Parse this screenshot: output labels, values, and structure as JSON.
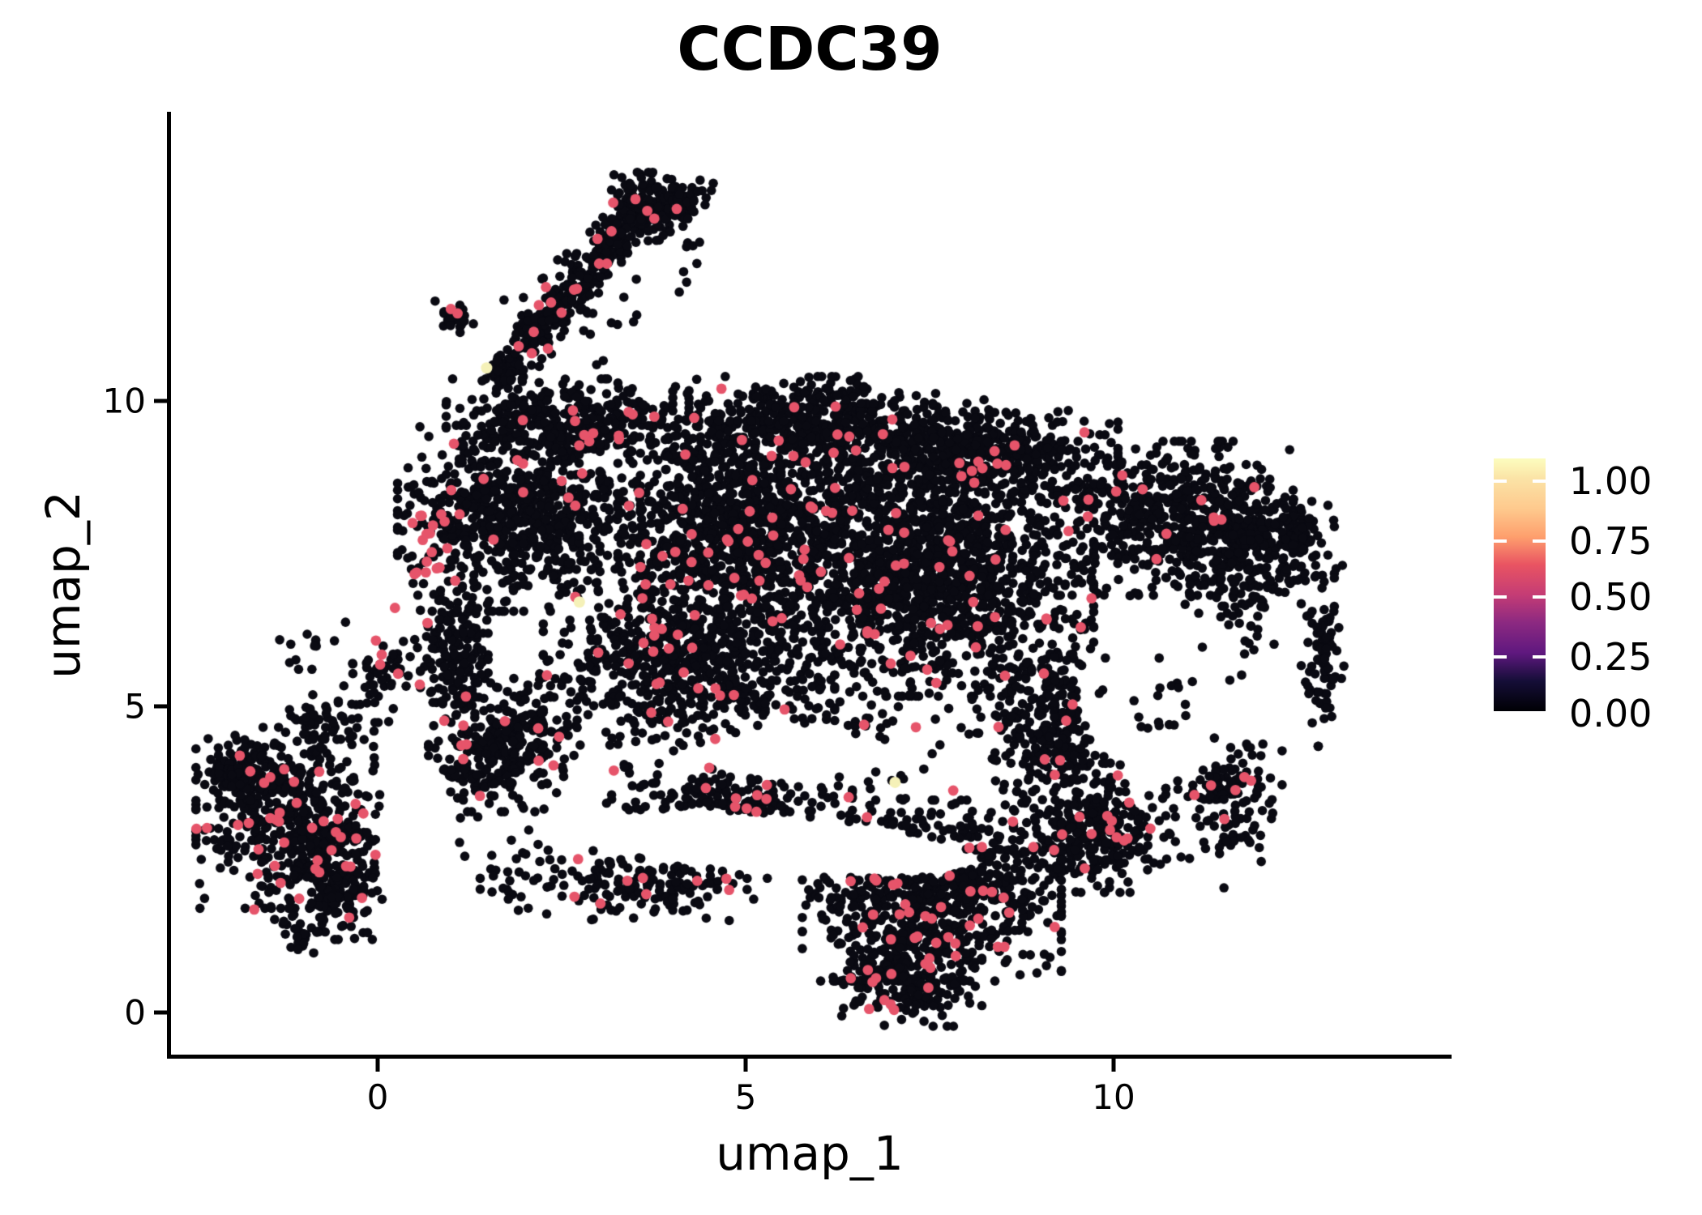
{
  "chart_data": {
    "type": "scatter",
    "title": "CCDC39",
    "xlabel": "umap_1",
    "ylabel": "umap_2",
    "xlim": [
      -2.82,
      14.56
    ],
    "ylim": [
      -0.72,
      14.73
    ],
    "x_ticks": [
      "0",
      "5",
      "10"
    ],
    "x_tick_values": [
      0,
      5,
      10
    ],
    "y_ticks": [
      "0",
      "5",
      "10"
    ],
    "y_tick_values": [
      0,
      5,
      10
    ],
    "grid": false,
    "background": "#ffffff",
    "seed": 42,
    "point_style": {
      "radius_black_px": 5.8,
      "radius_mid_px": 6.4,
      "radius_high_px": 7,
      "color_black": "#0A0A12",
      "color_mid": "#E6546A",
      "color_high": "#F5F1B8"
    },
    "clusters_black": [
      [
        1.7,
        10.53,
        0.28,
        0.33,
        55
      ],
      [
        2.08,
        11.06,
        0.31,
        0.37,
        55
      ],
      [
        2.47,
        11.55,
        0.33,
        0.4,
        55
      ],
      [
        2.8,
        12.05,
        0.33,
        0.4,
        55
      ],
      [
        3.13,
        12.58,
        0.35,
        0.42,
        60
      ],
      [
        3.4,
        12.95,
        0.35,
        0.42,
        55
      ],
      [
        3.68,
        13.18,
        0.61,
        0.56,
        130
      ],
      [
        4.17,
        13.31,
        0.39,
        0.33,
        45
      ],
      [
        1.04,
        11.39,
        0.26,
        0.27,
        28
      ],
      [
        2.58,
        11.52,
        0.94,
        1.13,
        42
      ],
      [
        4.23,
        12.38,
        0.22,
        0.6,
        8
      ],
      [
        1.92,
        8.08,
        1.65,
        1.52,
        720
      ],
      [
        2.58,
        9.67,
        1.65,
        0.69,
        360
      ],
      [
        5.88,
        9.67,
        1.87,
        0.73,
        420
      ],
      [
        4.78,
        7.95,
        1.76,
        1.72,
        900
      ],
      [
        4.23,
        5.7,
        1.98,
        1.33,
        620
      ],
      [
        7.53,
        7.29,
        2.2,
        2.12,
        1350
      ],
      [
        8.08,
        9.14,
        1.98,
        0.82,
        500
      ],
      [
        10.84,
        8.08,
        1.6,
        1.26,
        560
      ],
      [
        11.72,
        7.29,
        0.68,
        1.59,
        180
      ],
      [
        9.19,
        4.64,
        0.9,
        1.22,
        270
      ],
      [
        9.74,
        2.91,
        1.1,
        0.95,
        270
      ],
      [
        11.5,
        3.71,
        0.79,
        1.29,
        150
      ],
      [
        12.84,
        5.83,
        0.29,
        1.48,
        85
      ],
      [
        12.43,
        7.88,
        0.57,
        0.82,
        110
      ],
      [
        7.53,
        1.99,
        1.76,
        1.48,
        780
      ],
      [
        7.2,
        0.53,
        1.01,
        0.76,
        230
      ],
      [
        4.78,
        3.31,
        1.67,
        0.76,
        300
      ],
      [
        3.68,
        2.12,
        1.34,
        0.62,
        150
      ],
      [
        1.7,
        4.37,
        1.01,
        1.09,
        320
      ],
      [
        1.04,
        5.96,
        0.46,
        1.09,
        160
      ],
      [
        1.92,
        2.25,
        0.61,
        0.73,
        35
      ],
      [
        6.43,
        5.96,
        5.07,
        4.11,
        420
      ],
      [
        10.78,
        5.23,
        1.0,
        0.9,
        26,
        1
      ],
      [
        -1.17,
        3.18,
        1.3,
        1.48,
        440
      ],
      [
        -0.51,
        2.12,
        0.68,
        0.93,
        160
      ],
      [
        -1.83,
        3.97,
        0.52,
        0.56,
        120
      ],
      [
        0.6,
        2.78,
        0.79,
        0.69,
        75
      ],
      [
        -0.73,
        4.64,
        0.68,
        0.66,
        60
      ],
      [
        -1.06,
        1.33,
        0.46,
        0.36,
        26
      ],
      [
        0.04,
        5.56,
        0.5,
        0.82,
        50
      ],
      [
        -0.95,
        6.03,
        0.46,
        0.42,
        12
      ]
    ],
    "clusters_mid": [
      [
        1.9,
        10.8,
        0.35,
        0.45,
        3
      ],
      [
        2.5,
        11.6,
        0.4,
        0.5,
        4
      ],
      [
        3.1,
        12.5,
        0.45,
        0.5,
        4
      ],
      [
        3.7,
        13.2,
        0.5,
        0.45,
        5
      ],
      [
        1.05,
        11.4,
        0.2,
        0.25,
        2
      ],
      [
        2.6,
        11.5,
        0.8,
        1.0,
        3
      ],
      [
        -1.17,
        3.18,
        1.35,
        1.5,
        34
      ],
      [
        -0.5,
        2.1,
        0.7,
        0.9,
        8
      ],
      [
        0.6,
        2.8,
        0.8,
        0.7,
        6
      ],
      [
        0.7,
        7.8,
        0.5,
        1.5,
        22
      ],
      [
        1.9,
        8.6,
        0.9,
        0.9,
        10
      ],
      [
        3.5,
        9.6,
        1.6,
        0.6,
        12
      ],
      [
        5.9,
        9.6,
        1.7,
        0.6,
        10
      ],
      [
        8.1,
        9.1,
        1.9,
        0.7,
        12
      ],
      [
        4.8,
        7.6,
        1.8,
        1.7,
        34
      ],
      [
        7.5,
        7.1,
        2.2,
        2.0,
        40
      ],
      [
        4.2,
        5.7,
        1.9,
        1.3,
        24
      ],
      [
        10.8,
        8.1,
        1.5,
        1.2,
        12
      ],
      [
        9.2,
        4.6,
        0.9,
        1.2,
        10
      ],
      [
        9.7,
        2.9,
        1.0,
        0.9,
        12
      ],
      [
        11.5,
        3.7,
        0.7,
        1.2,
        7
      ],
      [
        7.5,
        2.0,
        1.7,
        1.4,
        44
      ],
      [
        7.2,
        0.6,
        1.0,
        0.7,
        12
      ],
      [
        4.8,
        3.3,
        1.6,
        0.7,
        12
      ],
      [
        3.7,
        2.1,
        1.3,
        0.6,
        8
      ],
      [
        1.7,
        4.4,
        1.0,
        1.0,
        12
      ],
      [
        0.05,
        5.6,
        0.6,
        0.7,
        5
      ],
      [
        6.4,
        6.0,
        5.0,
        4.0,
        32
      ]
    ],
    "points_high": [
      [
        1.48,
        10.54
      ],
      [
        2.74,
        6.71
      ],
      [
        7.03,
        3.76
      ]
    ],
    "holes": [
      [
        10.78,
        5.23,
        1.27,
        1.35,
        0
      ],
      [
        5.39,
        2.76,
        2.81,
        0.48,
        -6
      ],
      [
        0.54,
        2.65,
        0.57,
        1.48,
        0
      ],
      [
        5.66,
        4.24,
        0.95,
        0.49,
        0
      ]
    ],
    "colorbar": {
      "labels": [
        "1.00",
        "0.75",
        "0.50",
        "0.25",
        "0.00"
      ],
      "label_fractions_from_top": [
        0.09,
        0.327,
        0.548,
        0.785,
        1.01
      ],
      "tick_fractions_from_top": [
        0.09,
        0.327,
        0.548,
        0.785
      ],
      "tick_color": "#ffffff",
      "gradient_stops": [
        [
          0.0,
          "#000004"
        ],
        [
          0.12,
          "#150e38"
        ],
        [
          0.23,
          "#5f187f"
        ],
        [
          0.35,
          "#8c2981"
        ],
        [
          0.46,
          "#c43c75"
        ],
        [
          0.58,
          "#e95462"
        ],
        [
          0.69,
          "#fe9f6d"
        ],
        [
          0.8,
          "#fec98d"
        ],
        [
          0.92,
          "#fbe3a6"
        ],
        [
          1.0,
          "#fcfdbf"
        ]
      ]
    }
  }
}
